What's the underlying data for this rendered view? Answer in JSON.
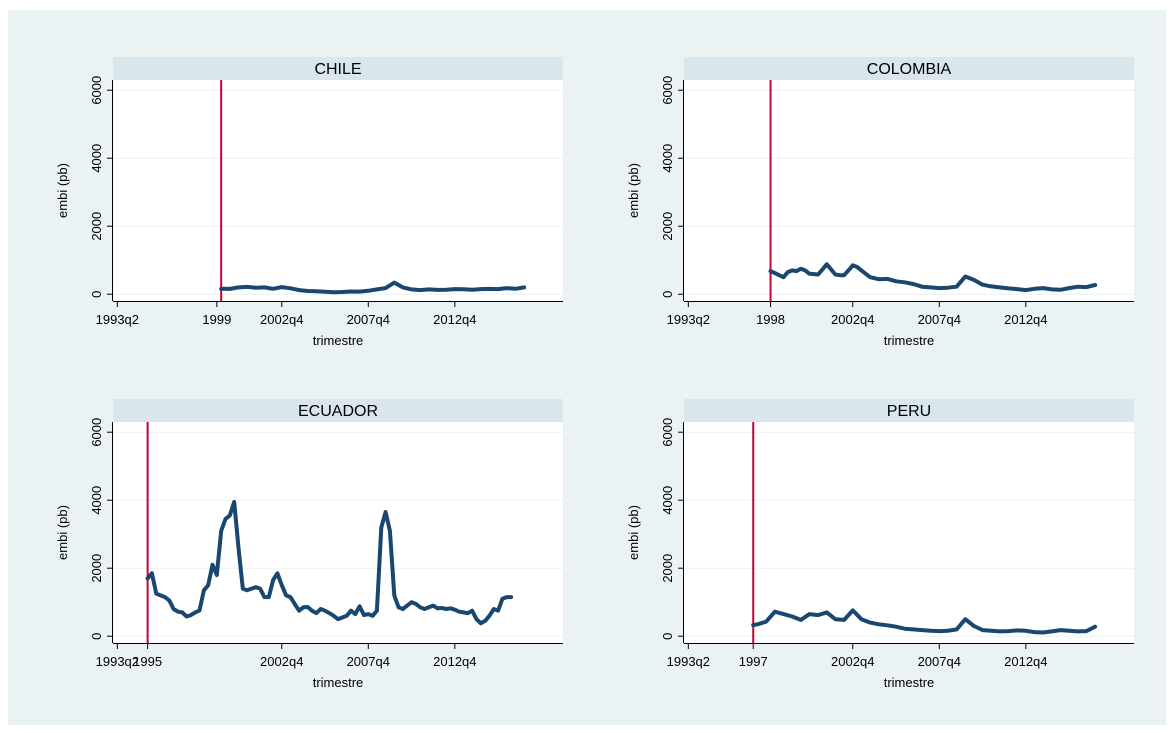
{
  "colors": {
    "outer_background": "#ffffff",
    "graph_region": "#eaf2f3",
    "plot_background": "#ffffff",
    "strip_background": "#d9e6eb",
    "series_line": "#1a476f",
    "reference_line": "#c10534",
    "grid": "#eaf2f3",
    "axis": "#000000"
  },
  "chart_data": [
    {
      "type": "line",
      "title": "CHILE",
      "xlabel": "trimestre",
      "ylabel": "embi (pb)",
      "xlim": [
        "1993q1",
        "2019q1"
      ],
      "ylim": [
        -200,
        6300
      ],
      "yticks": [
        0,
        2000,
        4000,
        6000
      ],
      "xticks": [
        "1993q2",
        "1999",
        "2002q4",
        "2007q4",
        "2012q4"
      ],
      "grid": true,
      "vline": "1999q2",
      "series": [
        {
          "x": [
            "1999q2",
            "1999q4",
            "2000q2",
            "2000q4",
            "2001q2",
            "2001q4",
            "2002q2",
            "2002q4",
            "2003q2",
            "2003q4",
            "2004q2",
            "2004q4",
            "2005q2",
            "2005q4",
            "2006q2",
            "2006q4",
            "2007q2",
            "2007q4",
            "2008q2",
            "2008q4",
            "2009q2",
            "2009q4",
            "2010q2",
            "2010q4",
            "2011q2",
            "2011q4",
            "2012q2",
            "2012q4",
            "2013q2",
            "2013q4",
            "2014q2",
            "2014q4",
            "2015q2",
            "2015q4",
            "2016q2",
            "2016q4"
          ],
          "values": [
            160,
            155,
            200,
            215,
            190,
            200,
            160,
            210,
            175,
            120,
            95,
            85,
            70,
            60,
            65,
            80,
            75,
            100,
            140,
            180,
            340,
            200,
            140,
            120,
            140,
            125,
            130,
            150,
            145,
            130,
            150,
            155,
            150,
            180,
            160,
            200
          ]
        }
      ]
    },
    {
      "type": "line",
      "title": "COLOMBIA",
      "xlabel": "trimestre",
      "ylabel": "embi (pb)",
      "xlim": [
        "1993q1",
        "2019q1"
      ],
      "ylim": [
        -200,
        6300
      ],
      "yticks": [
        0,
        2000,
        4000,
        6000
      ],
      "xticks": [
        "1993q2",
        "1998",
        "2002q4",
        "2007q4",
        "2012q4"
      ],
      "grid": true,
      "vline": "1998q1",
      "series": [
        {
          "x": [
            "1998q1",
            "1998q2",
            "1998q3",
            "1998q4",
            "1999q1",
            "1999q2",
            "1999q3",
            "1999q4",
            "2000q1",
            "2000q2",
            "2000q4",
            "2001q2",
            "2001q4",
            "2002q1",
            "2002q2",
            "2002q3",
            "2002q4",
            "2003q1",
            "2003q2",
            "2003q4",
            "2004q2",
            "2004q4",
            "2005q2",
            "2005q4",
            "2006q2",
            "2006q4",
            "2007q2",
            "2007q4",
            "2008q2",
            "2008q4",
            "2009q2",
            "2009q4",
            "2010q2",
            "2010q4",
            "2011q2",
            "2011q4",
            "2012q2",
            "2012q4",
            "2013q2",
            "2013q4",
            "2014q2",
            "2014q4",
            "2015q2",
            "2015q4",
            "2016q2",
            "2016q4"
          ],
          "values": [
            680,
            620,
            560,
            500,
            650,
            700,
            680,
            750,
            700,
            600,
            580,
            880,
            580,
            560,
            560,
            700,
            850,
            800,
            700,
            500,
            440,
            450,
            380,
            350,
            300,
            220,
            200,
            180,
            190,
            220,
            520,
            420,
            280,
            230,
            200,
            170,
            150,
            120,
            160,
            180,
            140,
            130,
            180,
            220,
            210,
            270
          ]
        }
      ]
    },
    {
      "type": "line",
      "title": "ECUADOR",
      "xlabel": "trimestre",
      "ylabel": "embi (pb)",
      "xlim": [
        "1993q1",
        "2019q1"
      ],
      "ylim": [
        -200,
        6300
      ],
      "yticks": [
        0,
        2000,
        4000,
        6000
      ],
      "xticks": [
        "1993q2",
        "1995",
        "2002q4",
        "2007q4",
        "2012q4"
      ],
      "grid": true,
      "vline": "1995q1",
      "series": [
        {
          "x": [
            "1995q1",
            "1995q2",
            "1995q3",
            "1995q4",
            "1996q1",
            "1996q2",
            "1996q3",
            "1996q4",
            "1997q1",
            "1997q2",
            "1997q3",
            "1997q4",
            "1998q1",
            "1998q2",
            "1998q3",
            "1998q4",
            "1999q1",
            "1999q2",
            "1999q3",
            "1999q4",
            "2000q1",
            "2000q2",
            "2000q3",
            "2000q4",
            "2001q1",
            "2001q2",
            "2001q3",
            "2001q4",
            "2002q1",
            "2002q2",
            "2002q3",
            "2002q4",
            "2003q1",
            "2003q2",
            "2003q3",
            "2003q4",
            "2004q1",
            "2004q2",
            "2004q3",
            "2004q4",
            "2005q1",
            "2005q2",
            "2005q3",
            "2005q4",
            "2006q1",
            "2006q2",
            "2006q3",
            "2006q4",
            "2007q1",
            "2007q2",
            "2007q3",
            "2007q4",
            "2008q1",
            "2008q2",
            "2008q3",
            "2008q4",
            "2009q1",
            "2009q2",
            "2009q3",
            "2009q4",
            "2010q1",
            "2010q2",
            "2010q3",
            "2010q4",
            "2011q1",
            "2011q2",
            "2011q3",
            "2011q4",
            "2012q1",
            "2012q2",
            "2012q3",
            "2012q4",
            "2013q1",
            "2013q2",
            "2013q3",
            "2013q4",
            "2014q1",
            "2014q2",
            "2014q3",
            "2014q4",
            "2015q1",
            "2015q2",
            "2015q3",
            "2015q4",
            "2016q1"
          ],
          "values": [
            1700,
            1850,
            1250,
            1200,
            1150,
            1050,
            800,
            720,
            700,
            580,
            620,
            700,
            760,
            1350,
            1500,
            2100,
            1800,
            3100,
            3450,
            3550,
            3950,
            2600,
            1400,
            1350,
            1400,
            1440,
            1400,
            1150,
            1150,
            1650,
            1850,
            1500,
            1200,
            1150,
            950,
            750,
            850,
            860,
            750,
            680,
            800,
            750,
            680,
            600,
            500,
            550,
            600,
            750,
            650,
            880,
            620,
            650,
            600,
            750,
            3200,
            3650,
            3100,
            1200,
            850,
            800,
            900,
            1000,
            950,
            850,
            800,
            850,
            900,
            820,
            830,
            800,
            820,
            780,
            720,
            700,
            680,
            750,
            500,
            380,
            450,
            600,
            800,
            750,
            1100,
            1150,
            1150
          ]
        }
      ]
    },
    {
      "type": "line",
      "title": "PERU",
      "xlabel": "trimestre",
      "ylabel": "embi (pb)",
      "xlim": [
        "1993q1",
        "2019q1"
      ],
      "ylim": [
        -200,
        6300
      ],
      "yticks": [
        0,
        2000,
        4000,
        6000
      ],
      "xticks": [
        "1993q2",
        "1997",
        "2002q4",
        "2007q4",
        "2012q4"
      ],
      "grid": true,
      "vline": "1997q1",
      "series": [
        {
          "x": [
            "1997q1",
            "1997q2",
            "1997q4",
            "1998q2",
            "1998q4",
            "1999q2",
            "1999q4",
            "2000q2",
            "2000q4",
            "2001q2",
            "2001q4",
            "2002q2",
            "2002q4",
            "2003q2",
            "2003q4",
            "2004q2",
            "2004q4",
            "2005q2",
            "2005q4",
            "2006q2",
            "2006q4",
            "2007q2",
            "2007q4",
            "2008q2",
            "2008q4",
            "2009q2",
            "2009q4",
            "2010q2",
            "2010q4",
            "2011q2",
            "2011q4",
            "2012q2",
            "2012q4",
            "2013q2",
            "2013q4",
            "2014q2",
            "2014q4",
            "2015q2",
            "2015q4",
            "2016q2",
            "2016q4"
          ],
          "values": [
            330,
            350,
            430,
            720,
            650,
            580,
            480,
            650,
            620,
            700,
            500,
            480,
            760,
            500,
            400,
            350,
            320,
            280,
            220,
            200,
            180,
            160,
            150,
            160,
            200,
            500,
            300,
            180,
            160,
            140,
            150,
            170,
            160,
            120,
            110,
            140,
            180,
            160,
            140,
            150,
            280
          ]
        }
      ]
    }
  ]
}
